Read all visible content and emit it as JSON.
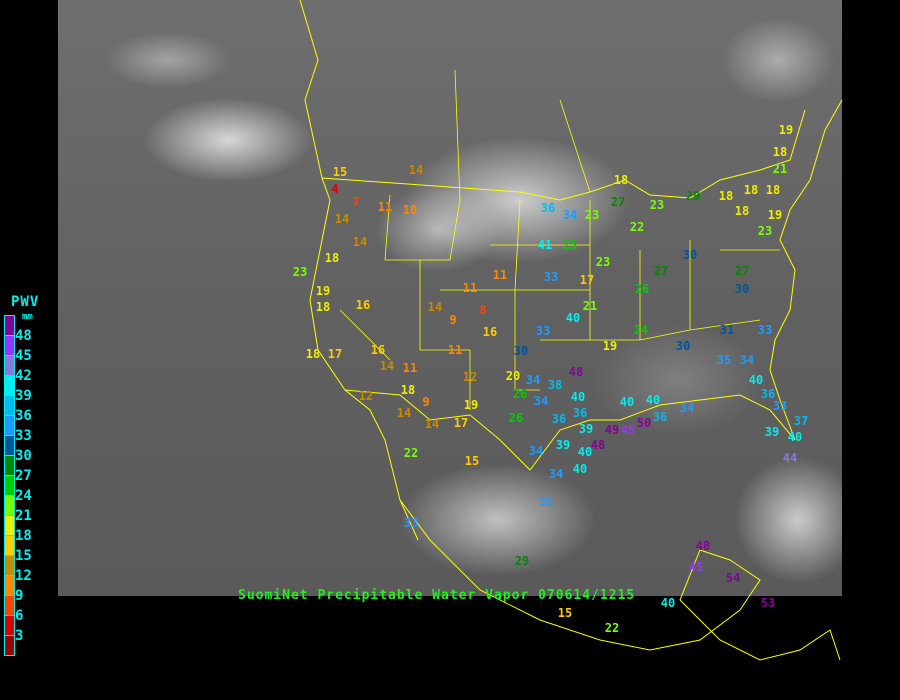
{
  "title": "SuomiNet Precipitable Water Vapor 070614/1215",
  "legend": {
    "title": "PWV",
    "unit": "mm",
    "labels": [
      "48",
      "45",
      "42",
      "39",
      "36",
      "33",
      "30",
      "27",
      "24",
      "21",
      "18",
      "15",
      "12",
      "9",
      "6",
      "3"
    ],
    "colors": [
      "#880099",
      "#9933ff",
      "#8877dd",
      "#00eeee",
      "#00bbee",
      "#2299ff",
      "#005599",
      "#008800",
      "#00cc00",
      "#77ff00",
      "#eeee00",
      "#ffcc00",
      "#cc8800",
      "#ff8800",
      "#ff4400",
      "#dd0000",
      "#990000"
    ]
  },
  "border_color": "#ffff00",
  "stations": [
    15,
    4,
    7,
    11,
    10,
    14,
    14,
    18,
    23,
    19,
    18,
    16,
    14,
    14,
    9,
    11,
    11,
    8,
    16,
    16,
    18,
    17,
    14,
    11,
    11,
    12,
    18,
    12,
    14,
    9,
    14,
    19,
    17,
    22,
    15,
    33,
    29,
    35,
    34,
    40,
    39,
    34,
    40,
    36,
    34,
    39,
    48,
    49,
    40,
    36,
    40,
    20,
    26,
    26,
    34,
    38,
    48,
    30,
    33,
    40,
    19,
    21,
    33,
    41,
    25,
    36,
    34,
    23,
    18,
    17,
    23,
    22,
    27,
    23,
    24,
    27,
    26,
    30,
    31,
    35,
    34,
    33,
    30,
    27,
    30,
    29,
    18,
    18,
    18,
    18,
    19,
    18,
    21,
    19,
    23,
    40,
    36,
    33,
    37,
    40,
    44,
    39,
    34,
    36,
    40,
    50,
    45,
    48,
    45,
    54,
    53,
    40,
    22,
    15
  ]
}
